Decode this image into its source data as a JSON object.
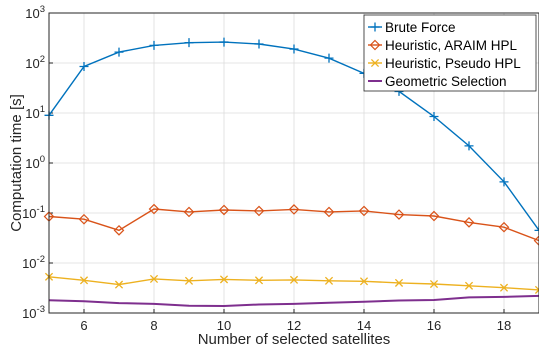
{
  "chart_data": {
    "type": "line",
    "xlabel": "Number of selected satellites",
    "ylabel": "Computation time [s]",
    "x": [
      5,
      6,
      7,
      8,
      9,
      10,
      11,
      12,
      13,
      14,
      15,
      16,
      17,
      18,
      19
    ],
    "xlim": [
      5,
      19
    ],
    "ylim": [
      0.001,
      1000
    ],
    "yscale": "log",
    "grid": true,
    "legend_position": "top-right",
    "x_ticks": [
      "6",
      "8",
      "10",
      "12",
      "14",
      "16",
      "18"
    ],
    "y_ticks": [
      {
        "base": "10",
        "exp": "-3"
      },
      {
        "base": "10",
        "exp": "-2"
      },
      {
        "base": "10",
        "exp": "-1"
      },
      {
        "base": "10",
        "exp": "0"
      },
      {
        "base": "10",
        "exp": "1"
      },
      {
        "base": "10",
        "exp": "2"
      },
      {
        "base": "10",
        "exp": "3"
      }
    ],
    "series": [
      {
        "name": "Brute Force",
        "color": "#0072BD",
        "marker": "plus",
        "values": [
          9,
          85,
          165,
          225,
          255,
          262,
          240,
          190,
          125,
          62,
          27,
          8.5,
          2.2,
          0.42,
          0.045
        ]
      },
      {
        "name": "Heuristic, ARAIM HPL",
        "color": "#D95319",
        "marker": "diamond",
        "values": [
          0.085,
          0.075,
          0.045,
          0.12,
          0.105,
          0.115,
          0.11,
          0.118,
          0.105,
          0.11,
          0.093,
          0.087,
          0.065,
          0.052,
          0.028
        ]
      },
      {
        "name": "Heuristic, Pseudo HPL",
        "color": "#EDB120",
        "marker": "x",
        "values": [
          0.0053,
          0.0045,
          0.0037,
          0.0048,
          0.0044,
          0.0047,
          0.0045,
          0.0046,
          0.0044,
          0.0043,
          0.004,
          0.0038,
          0.0035,
          0.0032,
          0.0029
        ]
      },
      {
        "name": "Geometric Selection",
        "color": "#7E2F8E",
        "marker": "none",
        "values": [
          0.0018,
          0.00172,
          0.00158,
          0.00152,
          0.0014,
          0.00138,
          0.00148,
          0.00152,
          0.0016,
          0.00168,
          0.00178,
          0.00182,
          0.00205,
          0.0021,
          0.0022
        ]
      }
    ]
  }
}
